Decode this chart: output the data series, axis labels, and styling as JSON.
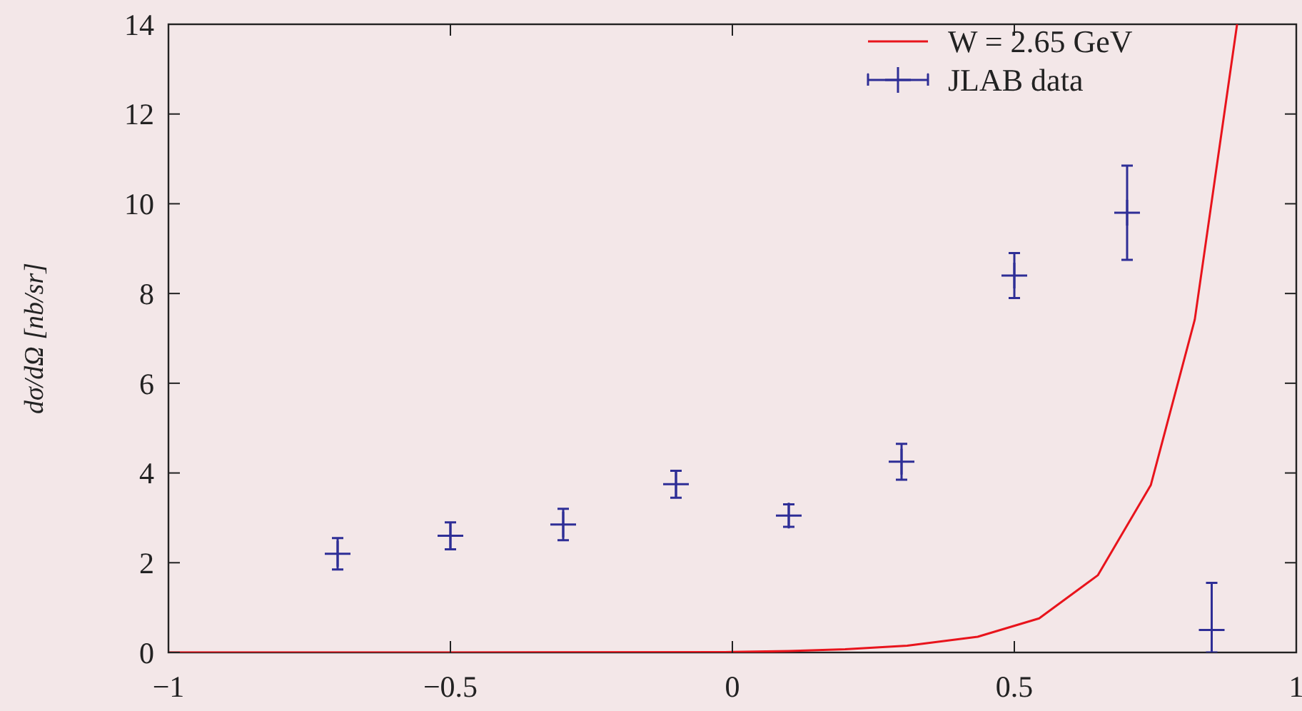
{
  "chart_data": {
    "type": "scatter",
    "ylabel": "dσ/dΩ [nb/sr]",
    "xlim": [
      -1,
      1
    ],
    "ylim": [
      0,
      14
    ],
    "xticks": [
      {
        "value": -1,
        "label": "−1"
      },
      {
        "value": -0.5,
        "label": "−0.5"
      },
      0,
      0.5,
      1
    ],
    "yticks": [
      0,
      2,
      4,
      6,
      8,
      10,
      12,
      14
    ],
    "grid": false,
    "legend": "top right",
    "series": [
      {
        "name": "W = 2.65 GeV",
        "type": "line",
        "color": "#e8141c",
        "marker": "none",
        "line_style": "solid",
        "x": [
          -1,
          -0.5,
          0,
          0.1,
          0.2,
          0.31,
          0.435,
          0.544,
          0.648,
          0.742,
          0.82,
          0.895
        ],
        "values": [
          0,
          0,
          0.01,
          0.03,
          0.07,
          0.15,
          0.35,
          0.76,
          1.72,
          3.73,
          7.42,
          14
        ]
      },
      {
        "name": "JLAB data",
        "type": "scatter",
        "color": "#2e2e96",
        "marker": "cross",
        "x": [
          -0.7,
          -0.5,
          -0.3,
          -0.1,
          0.1,
          0.3,
          0.5,
          0.7,
          0.85
        ],
        "values": [
          2.2,
          2.6,
          2.85,
          3.75,
          3.05,
          4.25,
          8.4,
          9.8,
          0.5
        ],
        "errors": [
          0.35,
          0.3,
          0.35,
          0.3,
          0.25,
          0.4,
          0.5,
          1.05,
          [
            0,
            1.55
          ]
        ]
      }
    ]
  }
}
